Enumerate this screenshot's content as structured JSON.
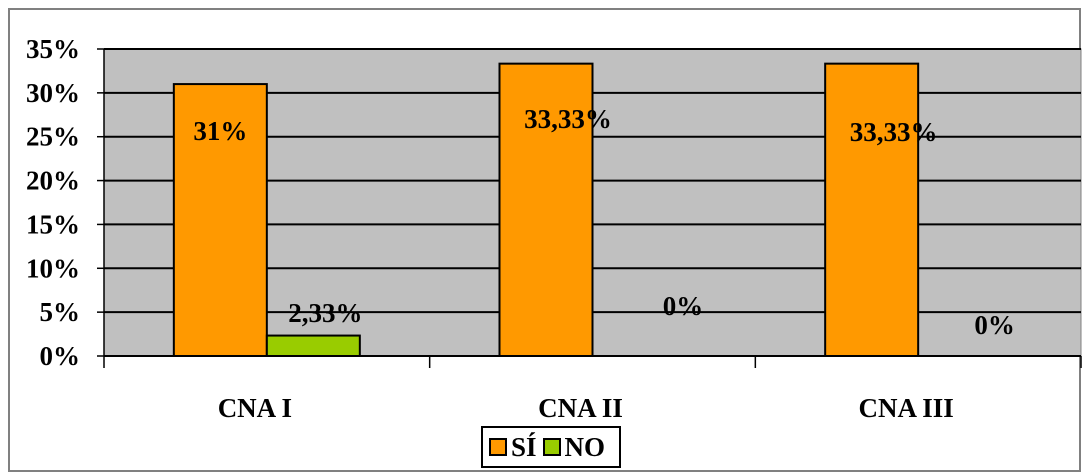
{
  "chart_data": {
    "type": "bar",
    "categories": [
      "CNA I",
      "CNA II",
      "CNA III"
    ],
    "series": [
      {
        "name": "SÍ",
        "values": [
          31,
          33.33,
          33.33
        ],
        "labels": [
          "31%",
          "33,33%",
          "33,33%"
        ],
        "color": "#FF9900"
      },
      {
        "name": "NO",
        "values": [
          2.33,
          0,
          0
        ],
        "labels": [
          "2,33%",
          "0%",
          "0%"
        ],
        "color": "#99CC00"
      }
    ],
    "y_ticks": [
      "0%",
      "5%",
      "10%",
      "15%",
      "20%",
      "25%",
      "30%",
      "35%"
    ],
    "ylim": [
      0,
      35
    ],
    "grid": true,
    "plot_background": "#C0C0C0",
    "legend": "bottom"
  }
}
